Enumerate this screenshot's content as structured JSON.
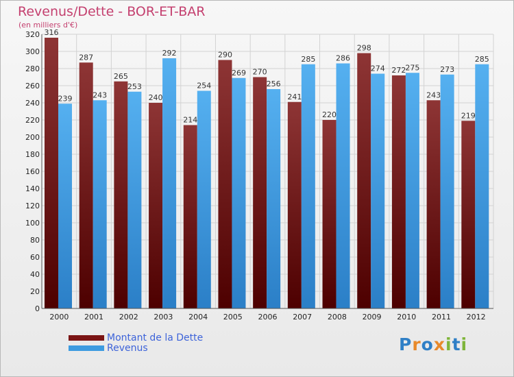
{
  "header": {
    "title": "Revenus/Dette - BOR-ET-BAR",
    "subtitle": "(en milliers d'€)"
  },
  "legend": {
    "items": [
      {
        "label": "Montant de la Dette",
        "color": "#7a1414"
      },
      {
        "label": "Revenus",
        "color": "#3d9be0"
      }
    ]
  },
  "logo": {
    "text": "Proxiti",
    "letters": [
      {
        "ch": "P",
        "color": "#2f7fc6"
      },
      {
        "ch": "r",
        "color": "#e8892a"
      },
      {
        "ch": "o",
        "color": "#2f7fc6"
      },
      {
        "ch": "x",
        "color": "#e8892a"
      },
      {
        "ch": "i",
        "color": "#7fb53a"
      },
      {
        "ch": "t",
        "color": "#2f7fc6"
      },
      {
        "ch": "i",
        "color": "#7fb53a"
      }
    ]
  },
  "chart_data": {
    "type": "bar",
    "title": "Revenus/Dette - BOR-ET-BAR",
    "subtitle": "(en milliers d'€)",
    "categories": [
      "2000",
      "2001",
      "2002",
      "2003",
      "2004",
      "2005",
      "2006",
      "2007",
      "2008",
      "2009",
      "2010",
      "2011",
      "2012"
    ],
    "series": [
      {
        "name": "Montant de la Dette",
        "color": "#7a1414",
        "values": [
          316,
          287,
          265,
          240,
          214,
          290,
          270,
          241,
          220,
          298,
          272,
          243,
          219
        ]
      },
      {
        "name": "Revenus",
        "color": "#3d9be0",
        "values": [
          239,
          243,
          253,
          292,
          254,
          269,
          256,
          285,
          286,
          274,
          275,
          273,
          285
        ]
      }
    ],
    "ylim": [
      0,
      320
    ],
    "ytick_step": 20,
    "grid": true,
    "legend_position": "bottom-left"
  }
}
